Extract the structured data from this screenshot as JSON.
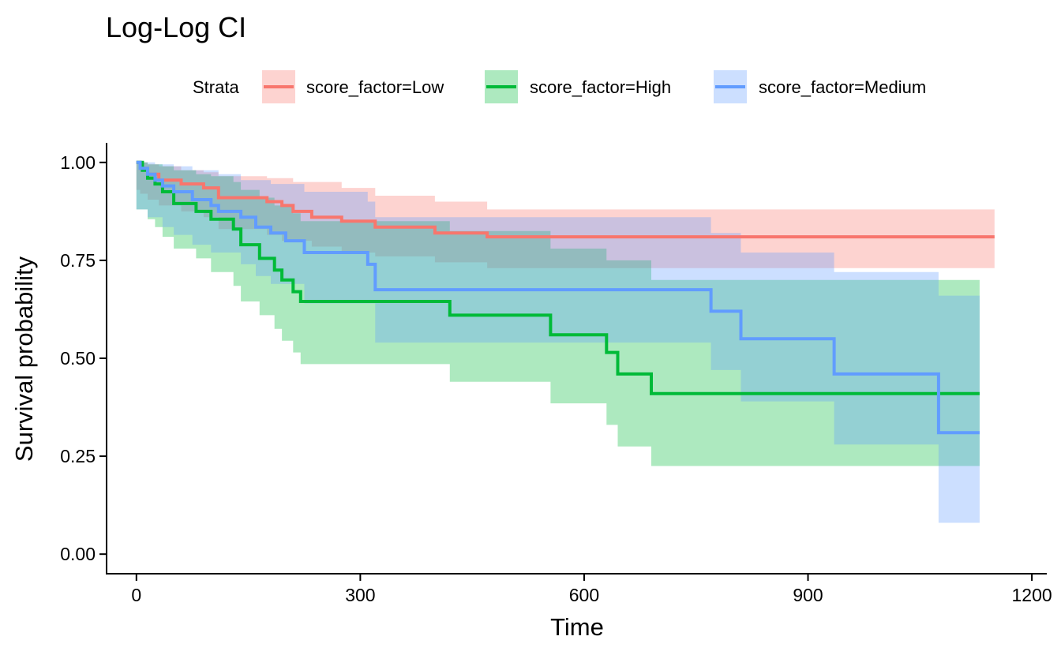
{
  "chart_data": {
    "type": "line",
    "title": "Log-Log CI",
    "xlabel": "Time",
    "ylabel": "Survival probability",
    "xlim": [
      -40,
      1220
    ],
    "ylim": [
      -0.05,
      1.05
    ],
    "x_ticks": [
      0,
      300,
      600,
      900,
      1200
    ],
    "y_ticks": [
      0,
      0.25,
      0.5,
      0.75,
      1
    ],
    "x_tick_labels": [
      "0",
      "300",
      "600",
      "900",
      "1200"
    ],
    "y_tick_labels": [
      "0.00",
      "0.25",
      "0.50",
      "0.75",
      "1.00"
    ],
    "grid": false,
    "legend": {
      "title": "Strata",
      "position": "top"
    },
    "series": [
      {
        "name": "score_factor=Low",
        "color": "#F8766D",
        "steps": [
          [
            0,
            1.0
          ],
          [
            5,
            0.985
          ],
          [
            15,
            0.97
          ],
          [
            30,
            0.955
          ],
          [
            60,
            0.945
          ],
          [
            90,
            0.935
          ],
          [
            110,
            0.91
          ],
          [
            175,
            0.9
          ],
          [
            195,
            0.89
          ],
          [
            210,
            0.875
          ],
          [
            235,
            0.86
          ],
          [
            275,
            0.85
          ],
          [
            320,
            0.835
          ],
          [
            400,
            0.82
          ],
          [
            470,
            0.81
          ],
          [
            1150,
            0.81
          ]
        ],
        "lower": [
          [
            0,
            0.93
          ],
          [
            5,
            0.92
          ],
          [
            15,
            0.905
          ],
          [
            30,
            0.89
          ],
          [
            60,
            0.875
          ],
          [
            90,
            0.86
          ],
          [
            110,
            0.83
          ],
          [
            175,
            0.815
          ],
          [
            195,
            0.8
          ],
          [
            235,
            0.785
          ],
          [
            275,
            0.77
          ],
          [
            320,
            0.76
          ],
          [
            400,
            0.745
          ],
          [
            470,
            0.73
          ],
          [
            1150,
            0.71
          ]
        ],
        "upper": [
          [
            0,
            1.0
          ],
          [
            15,
            0.995
          ],
          [
            30,
            0.99
          ],
          [
            60,
            0.98
          ],
          [
            90,
            0.975
          ],
          [
            110,
            0.965
          ],
          [
            175,
            0.96
          ],
          [
            210,
            0.95
          ],
          [
            275,
            0.935
          ],
          [
            320,
            0.915
          ],
          [
            400,
            0.9
          ],
          [
            470,
            0.88
          ],
          [
            1150,
            0.88
          ]
        ]
      },
      {
        "name": "score_factor=High",
        "color": "#00BA38",
        "steps": [
          [
            0,
            1.0
          ],
          [
            8,
            0.98
          ],
          [
            15,
            0.96
          ],
          [
            25,
            0.945
          ],
          [
            35,
            0.925
          ],
          [
            50,
            0.895
          ],
          [
            80,
            0.875
          ],
          [
            100,
            0.855
          ],
          [
            130,
            0.83
          ],
          [
            140,
            0.79
          ],
          [
            165,
            0.755
          ],
          [
            185,
            0.725
          ],
          [
            195,
            0.7
          ],
          [
            210,
            0.67
          ],
          [
            220,
            0.645
          ],
          [
            380,
            0.645
          ],
          [
            420,
            0.61
          ],
          [
            555,
            0.56
          ],
          [
            630,
            0.515
          ],
          [
            645,
            0.46
          ],
          [
            690,
            0.41
          ],
          [
            1130,
            0.41
          ]
        ],
        "lower": [
          [
            0,
            0.88
          ],
          [
            15,
            0.855
          ],
          [
            25,
            0.835
          ],
          [
            35,
            0.81
          ],
          [
            50,
            0.78
          ],
          [
            80,
            0.755
          ],
          [
            100,
            0.72
          ],
          [
            130,
            0.685
          ],
          [
            140,
            0.645
          ],
          [
            165,
            0.61
          ],
          [
            185,
            0.575
          ],
          [
            195,
            0.545
          ],
          [
            210,
            0.515
          ],
          [
            220,
            0.485
          ],
          [
            420,
            0.44
          ],
          [
            555,
            0.385
          ],
          [
            630,
            0.33
          ],
          [
            645,
            0.275
          ],
          [
            690,
            0.225
          ],
          [
            1130,
            0.225
          ]
        ],
        "upper": [
          [
            0,
            1.0
          ],
          [
            15,
            0.995
          ],
          [
            35,
            0.99
          ],
          [
            50,
            0.98
          ],
          [
            80,
            0.97
          ],
          [
            100,
            0.965
          ],
          [
            130,
            0.95
          ],
          [
            140,
            0.93
          ],
          [
            165,
            0.91
          ],
          [
            185,
            0.89
          ],
          [
            210,
            0.87
          ],
          [
            220,
            0.85
          ],
          [
            320,
            0.85
          ],
          [
            420,
            0.825
          ],
          [
            555,
            0.78
          ],
          [
            630,
            0.75
          ],
          [
            690,
            0.7
          ],
          [
            1130,
            0.59
          ]
        ]
      },
      {
        "name": "score_factor=Medium",
        "color": "#619CFF",
        "steps": [
          [
            0,
            1.0
          ],
          [
            5,
            0.985
          ],
          [
            15,
            0.97
          ],
          [
            25,
            0.955
          ],
          [
            35,
            0.94
          ],
          [
            50,
            0.925
          ],
          [
            75,
            0.905
          ],
          [
            100,
            0.89
          ],
          [
            110,
            0.875
          ],
          [
            140,
            0.86
          ],
          [
            160,
            0.835
          ],
          [
            180,
            0.82
          ],
          [
            200,
            0.8
          ],
          [
            225,
            0.77
          ],
          [
            310,
            0.74
          ],
          [
            320,
            0.675
          ],
          [
            770,
            0.62
          ],
          [
            810,
            0.55
          ],
          [
            935,
            0.46
          ],
          [
            1075,
            0.31
          ],
          [
            1130,
            0.31
          ]
        ],
        "lower": [
          [
            0,
            0.88
          ],
          [
            15,
            0.86
          ],
          [
            35,
            0.835
          ],
          [
            50,
            0.815
          ],
          [
            75,
            0.79
          ],
          [
            100,
            0.77
          ],
          [
            140,
            0.74
          ],
          [
            160,
            0.71
          ],
          [
            180,
            0.69
          ],
          [
            225,
            0.64
          ],
          [
            320,
            0.54
          ],
          [
            770,
            0.47
          ],
          [
            810,
            0.39
          ],
          [
            935,
            0.28
          ],
          [
            1075,
            0.08
          ],
          [
            1130,
            0.08
          ]
        ],
        "upper": [
          [
            0,
            1.0
          ],
          [
            25,
            0.995
          ],
          [
            50,
            0.99
          ],
          [
            75,
            0.98
          ],
          [
            110,
            0.97
          ],
          [
            140,
            0.955
          ],
          [
            180,
            0.945
          ],
          [
            225,
            0.925
          ],
          [
            310,
            0.9
          ],
          [
            320,
            0.86
          ],
          [
            770,
            0.82
          ],
          [
            810,
            0.77
          ],
          [
            935,
            0.72
          ],
          [
            1075,
            0.66
          ],
          [
            1130,
            0.66
          ]
        ]
      }
    ]
  }
}
